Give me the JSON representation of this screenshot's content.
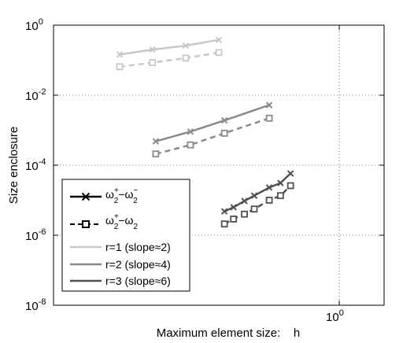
{
  "chart_data": {
    "type": "line",
    "title": "",
    "xlabel": "Maximum element size:    h",
    "ylabel": "Size enclosure",
    "x_scale": "log",
    "y_scale": "log",
    "xlim": [
      0.05,
      1.6
    ],
    "ylim": [
      1e-08,
      1
    ],
    "x_tick_labels": [
      {
        "value": 1,
        "base": "10",
        "exp": "0"
      }
    ],
    "y_tick_labels": [
      {
        "value": 1,
        "base": "10",
        "exp": "0"
      },
      {
        "value": 0.01,
        "base": "10",
        "exp": "-2"
      },
      {
        "value": 0.0001,
        "base": "10",
        "exp": "-4"
      },
      {
        "value": 1e-06,
        "base": "10",
        "exp": "-6"
      },
      {
        "value": 1e-08,
        "base": "10",
        "exp": "-8"
      }
    ],
    "grid": true,
    "legend_position": "lower-left",
    "legend": [
      {
        "label_main": "ω",
        "sub1": "2",
        "sup1": "+",
        "dash": "−ω",
        "sub2": "2",
        "sup2": "−",
        "marker": "x",
        "style": "solid",
        "color": "#000000"
      },
      {
        "label_main": "ω",
        "sub1": "2",
        "sup1": "+",
        "dash": "−ω",
        "sub2": "2",
        "sup2": "",
        "marker": "square",
        "style": "dashed",
        "color": "#000000"
      },
      {
        "label": "r=1 (slope≈2)",
        "style": "solid",
        "color": "#c8c8c8"
      },
      {
        "label": "r=2 (slope≈4)",
        "style": "solid",
        "color": "#8a8a8a"
      },
      {
        "label": "r=3 (slope≈6)",
        "style": "solid",
        "color": "#505050"
      }
    ],
    "series": [
      {
        "group": "r=1",
        "kind": "ω2+ − ω2−",
        "marker": "x",
        "style": "solid",
        "color": "#c8c8c8",
        "x": [
          0.1,
          0.141,
          0.2,
          0.283
        ],
        "y": [
          0.145,
          0.2,
          0.26,
          0.38
        ]
      },
      {
        "group": "r=1",
        "kind": "ω2+ − ω2",
        "marker": "square",
        "style": "dashed",
        "color": "#c8c8c8",
        "x": [
          0.1,
          0.141,
          0.2,
          0.283
        ],
        "y": [
          0.065,
          0.085,
          0.115,
          0.165
        ]
      },
      {
        "group": "r=2",
        "kind": "ω2+ − ω2−",
        "marker": "x",
        "style": "solid",
        "color": "#8a8a8a",
        "x": [
          0.146,
          0.21,
          0.3,
          0.48
        ],
        "y": [
          0.00048,
          0.00091,
          0.0019,
          0.0052
        ]
      },
      {
        "group": "r=2",
        "kind": "ω2+ − ω2",
        "marker": "square",
        "style": "dashed",
        "color": "#8a8a8a",
        "x": [
          0.146,
          0.21,
          0.3,
          0.48
        ],
        "y": [
          0.00021,
          0.00038,
          0.00082,
          0.0022
        ]
      },
      {
        "group": "r=3",
        "kind": "ω2+ − ω2−",
        "marker": "x",
        "style": "solid",
        "color": "#505050",
        "x": [
          0.3,
          0.33,
          0.37,
          0.41,
          0.48,
          0.54,
          0.6
        ],
        "y": [
          4.8e-06,
          6.3e-06,
          9.5e-06,
          1.35e-05,
          2.3e-05,
          3.1e-05,
          5.8e-05
        ]
      },
      {
        "group": "r=3",
        "kind": "ω2+ − ω2",
        "marker": "square",
        "style": "dashed",
        "color": "#505050",
        "x": [
          0.3,
          0.33,
          0.37,
          0.41,
          0.48,
          0.54,
          0.6
        ],
        "y": [
          2.1e-06,
          2.9e-06,
          4e-06,
          5.6e-06,
          1e-05,
          1.35e-05,
          2.6e-05
        ]
      }
    ]
  }
}
